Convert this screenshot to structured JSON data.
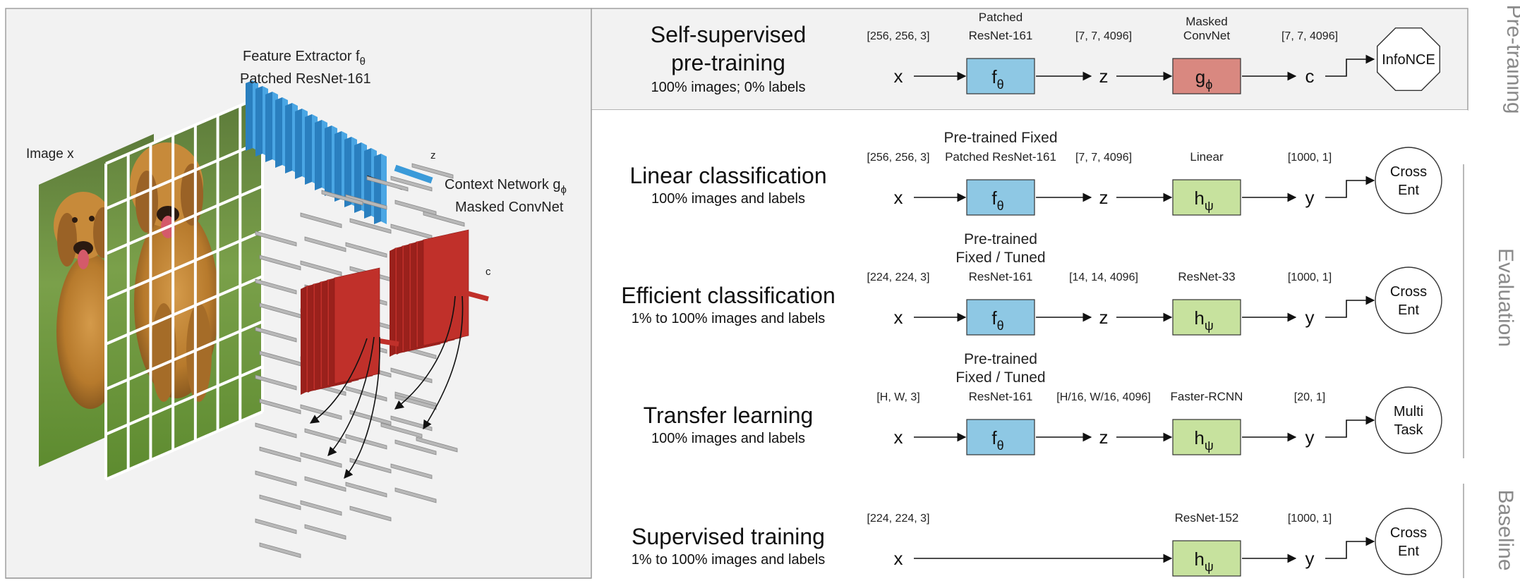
{
  "left": {
    "image_label": "Image x",
    "extractor_label_1": "Feature Extractor f",
    "extractor_sub": "θ",
    "extractor_label_2": "Patched ResNet-161",
    "context_label_1": "Context Network g",
    "context_sub": "ϕ",
    "context_label_2": "Masked ConvNet",
    "z_label": "z",
    "c_label": "c"
  },
  "rows": [
    {
      "title_1": "Self-supervised",
      "title_2": "pre-training",
      "subtitle": "100% images; 0% labels",
      "input_shape": "[256, 256, 3]",
      "f_label": [
        "Patched",
        "ResNet-161"
      ],
      "z_shape": "[7, 7, 4096]",
      "g_label": [
        "Masked",
        "ConvNet"
      ],
      "c_shape": "[7, 7, 4096]",
      "in_var": "x",
      "mid_var": "z",
      "out_var": "c",
      "f_sym": "f",
      "f_sub": "θ",
      "g_sym": "g",
      "g_sub": "ϕ",
      "loss": [
        "InfoNCE"
      ]
    },
    {
      "title_1": "Linear classification",
      "subtitle": "100% images and labels",
      "input_shape": "[256, 256, 3]",
      "f_label": [
        "Pre-trained Fixed",
        "Patched ResNet-161"
      ],
      "z_shape": "[7, 7, 4096]",
      "g_label": [
        "Linear"
      ],
      "c_shape": "[1000, 1]",
      "in_var": "x",
      "mid_var": "z",
      "out_var": "y",
      "f_sym": "f",
      "f_sub": "θ",
      "g_sym": "h",
      "g_sub": "ψ",
      "loss": [
        "Cross",
        "Ent"
      ]
    },
    {
      "title_1": "Efficient classification",
      "subtitle": "1% to 100% images and labels",
      "input_shape": "[224, 224, 3]",
      "f_label": [
        "Pre-trained",
        "Fixed / Tuned",
        "ResNet-161"
      ],
      "z_shape": "[14, 14, 4096]",
      "g_label": [
        "ResNet-33"
      ],
      "c_shape": "[1000, 1]",
      "in_var": "x",
      "mid_var": "z",
      "out_var": "y",
      "f_sym": "f",
      "f_sub": "θ",
      "g_sym": "h",
      "g_sub": "ψ",
      "loss": [
        "Cross",
        "Ent"
      ]
    },
    {
      "title_1": "Transfer learning",
      "subtitle": "100% images and labels",
      "input_shape": "[H, W, 3]",
      "f_label": [
        "Pre-trained",
        "Fixed / Tuned",
        "ResNet-161"
      ],
      "z_shape": "[H/16, W/16, 4096]",
      "g_label": [
        "Faster-RCNN"
      ],
      "c_shape": "[20, 1]",
      "in_var": "x",
      "mid_var": "z",
      "out_var": "y",
      "f_sym": "f",
      "f_sub": "θ",
      "g_sym": "h",
      "g_sub": "ψ",
      "loss": [
        "Multi",
        "Task"
      ]
    },
    {
      "title_1": "Supervised training",
      "subtitle": "1% to 100% images and labels",
      "input_shape": "[224, 224, 3]",
      "g_label": [
        "ResNet-152"
      ],
      "c_shape": "[1000, 1]",
      "in_var": "x",
      "out_var": "y",
      "g_sym": "h",
      "g_sub": "ψ",
      "loss": [
        "Cross",
        "Ent"
      ]
    }
  ],
  "side_labels": {
    "pretraining": "Pre-training",
    "evaluation": "Evaluation",
    "baseline": "Baseline"
  },
  "colors": {
    "f_box": "#8ec8e4",
    "g_box": "#d98880",
    "h_box": "#c7e29e",
    "cube_blue": "#3a9ad9",
    "cube_red": "#c0302a",
    "panel_bg": "#f1f1f1",
    "panel_border": "#9a9a9a"
  }
}
